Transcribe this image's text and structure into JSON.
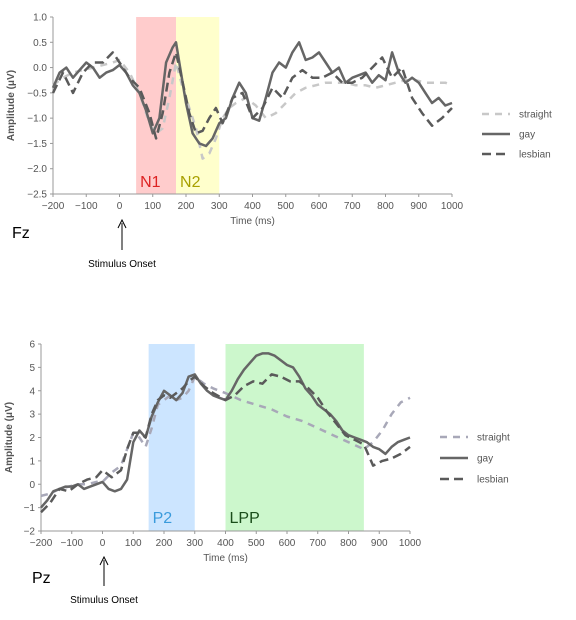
{
  "chart_data": [
    {
      "type": "line",
      "panel_label": "Fz",
      "xlabel": "Time (ms)",
      "ylabel": "Amplitude (μV)",
      "xlim": [
        -200,
        1000
      ],
      "ylim": [
        -2.5,
        1.0
      ],
      "x_ticks": [
        -200,
        -100,
        0,
        100,
        200,
        300,
        400,
        500,
        600,
        700,
        800,
        900,
        1000
      ],
      "y_ticks": [
        -2.5,
        -2.0,
        -1.5,
        -1.0,
        -0.5,
        0.0,
        0.5,
        1.0
      ],
      "y_tick_labels": [
        "−2.5",
        "−2.0",
        "−1.5",
        "−1.0",
        "−0.5",
        "0.0",
        "0.5",
        "1.0"
      ],
      "x_tick_labels": [
        "−200",
        "−100",
        "0",
        "100",
        "200",
        "300",
        "400",
        "500",
        "600",
        "700",
        "800",
        "900",
        "1000"
      ],
      "legend_position": "right",
      "annotation": "Stimulus Onset",
      "annotation_x": 0,
      "regions": [
        {
          "label": "N1",
          "x_start": 50,
          "x_end": 170,
          "color": "#ffcccc",
          "label_color": "#dd2222"
        },
        {
          "label": "N2",
          "x_start": 170,
          "x_end": 300,
          "color": "#ffffcc",
          "label_color": "#a8a000"
        }
      ],
      "series": [
        {
          "name": "straight",
          "color": "#c8c8c8",
          "dash": "7,6",
          "width": 2.5,
          "x": [
            -200,
            -170,
            -140,
            -110,
            -80,
            -50,
            -20,
            0,
            30,
            60,
            90,
            110,
            130,
            150,
            170,
            190,
            210,
            230,
            250,
            270,
            290,
            310,
            330,
            350,
            380,
            410,
            440,
            470,
            500,
            530,
            560,
            590,
            620,
            650,
            680,
            710,
            740,
            770,
            800,
            830,
            860,
            890,
            920,
            950,
            980,
            1000
          ],
          "y": [
            -0.35,
            -0.2,
            -0.1,
            -0.05,
            0.0,
            0.05,
            0.1,
            0.15,
            -0.1,
            -0.5,
            -1.1,
            -1.3,
            -1.2,
            -0.6,
            0.1,
            -0.4,
            -0.8,
            -1.2,
            -1.8,
            -1.7,
            -1.4,
            -1.0,
            -0.8,
            -0.7,
            -0.6,
            -0.75,
            -1.0,
            -0.9,
            -0.7,
            -0.5,
            -0.4,
            -0.35,
            -0.3,
            -0.3,
            -0.3,
            -0.35,
            -0.35,
            -0.4,
            -0.35,
            -0.3,
            -0.25,
            -0.25,
            -0.3,
            -0.3,
            -0.3,
            -0.35
          ]
        },
        {
          "name": "gay",
          "color": "#666666",
          "dash": "",
          "width": 2.5,
          "x": [
            -200,
            -180,
            -160,
            -140,
            -120,
            -100,
            -80,
            -60,
            -40,
            -20,
            0,
            20,
            40,
            60,
            80,
            100,
            120,
            140,
            160,
            170,
            180,
            200,
            220,
            240,
            260,
            280,
            300,
            320,
            340,
            360,
            380,
            400,
            420,
            440,
            460,
            480,
            500,
            520,
            540,
            560,
            580,
            600,
            620,
            640,
            660,
            680,
            700,
            720,
            740,
            760,
            780,
            800,
            820,
            840,
            860,
            880,
            900,
            920,
            940,
            960,
            980,
            1000
          ],
          "y": [
            -0.4,
            -0.1,
            0.0,
            -0.2,
            -0.05,
            0.1,
            0.0,
            -0.2,
            -0.1,
            -0.05,
            0.05,
            -0.1,
            -0.35,
            -0.5,
            -0.85,
            -1.3,
            -1.0,
            0.1,
            0.4,
            0.5,
            0.1,
            -0.7,
            -1.3,
            -1.5,
            -1.55,
            -1.4,
            -1.1,
            -1.0,
            -0.6,
            -0.3,
            -0.5,
            -1.0,
            -1.05,
            -0.6,
            -0.1,
            0.1,
            0.0,
            0.3,
            0.5,
            0.15,
            0.2,
            0.3,
            0.1,
            -0.1,
            0.0,
            -0.3,
            -0.2,
            -0.15,
            -0.1,
            -0.3,
            -0.15,
            -0.25,
            0.3,
            -0.1,
            -0.3,
            -0.2,
            -0.3,
            -0.5,
            -0.7,
            -0.6,
            -0.75,
            -0.7
          ]
        },
        {
          "name": "lesbian",
          "color": "#5a5a5a",
          "dash": "9,5",
          "width": 2.5,
          "x": [
            -200,
            -170,
            -140,
            -110,
            -80,
            -50,
            -20,
            0,
            30,
            60,
            90,
            110,
            130,
            150,
            170,
            190,
            210,
            230,
            250,
            270,
            290,
            310,
            340,
            370,
            400,
            430,
            460,
            490,
            520,
            550,
            580,
            610,
            640,
            670,
            700,
            730,
            760,
            790,
            820,
            850,
            880,
            910,
            940,
            970,
            1000
          ],
          "y": [
            -0.5,
            -0.1,
            -0.5,
            -0.1,
            0.1,
            0.1,
            0.3,
            0.1,
            -0.2,
            -0.4,
            -0.9,
            -1.4,
            -0.9,
            -0.1,
            0.3,
            -0.3,
            -0.9,
            -1.3,
            -1.25,
            -1.0,
            -0.8,
            -1.1,
            -0.6,
            -0.5,
            -1.0,
            -0.8,
            -0.4,
            -0.6,
            -0.2,
            -0.05,
            -0.2,
            -0.2,
            -0.1,
            -0.3,
            -0.3,
            -0.2,
            0.0,
            0.2,
            -0.2,
            0.0,
            -0.6,
            -0.9,
            -1.15,
            -1.0,
            -0.8
          ]
        }
      ]
    },
    {
      "type": "line",
      "panel_label": "Pz",
      "xlabel": "Time (ms)",
      "ylabel": "Amplitude (μV)",
      "xlim": [
        -200,
        1000
      ],
      "ylim": [
        -2,
        6
      ],
      "x_ticks": [
        -200,
        -100,
        0,
        100,
        200,
        300,
        400,
        500,
        600,
        700,
        800,
        900,
        1000
      ],
      "y_ticks": [
        -2,
        -1,
        0,
        1,
        2,
        3,
        4,
        5,
        6
      ],
      "y_tick_labels": [
        "−2",
        "−1",
        "0",
        "1",
        "2",
        "3",
        "4",
        "5",
        "6"
      ],
      "x_tick_labels": [
        "−200",
        "−100",
        "0",
        "100",
        "200",
        "300",
        "400",
        "500",
        "600",
        "700",
        "800",
        "900",
        "1000"
      ],
      "legend_position": "right",
      "annotation": "Stimulus Onset",
      "annotation_x": 0,
      "regions": [
        {
          "label": "P2",
          "x_start": 150,
          "x_end": 300,
          "color": "#cce5ff",
          "label_color": "#3a9bdc"
        },
        {
          "label": "LPP",
          "x_start": 400,
          "x_end": 850,
          "color": "#ccf7cc",
          "label_color": "#1a4d1a"
        }
      ],
      "series": [
        {
          "name": "straight",
          "color": "#a8a8b8",
          "dash": "7,6",
          "width": 2.5,
          "x": [
            -200,
            -170,
            -140,
            -110,
            -80,
            -50,
            -20,
            0,
            30,
            60,
            80,
            100,
            120,
            140,
            160,
            180,
            200,
            220,
            240,
            260,
            280,
            300,
            330,
            360,
            400,
            450,
            500,
            550,
            600,
            650,
            700,
            750,
            800,
            850,
            880,
            910,
            940,
            970,
            1000
          ],
          "y": [
            -0.5,
            -0.4,
            -0.2,
            -0.1,
            0.0,
            0.0,
            0.1,
            0.1,
            0.5,
            0.8,
            1.5,
            2.2,
            2.0,
            1.6,
            2.4,
            3.4,
            3.6,
            3.8,
            3.6,
            3.7,
            4.0,
            4.6,
            4.3,
            4.1,
            3.9,
            3.6,
            3.4,
            3.2,
            2.9,
            2.7,
            2.4,
            2.1,
            1.8,
            1.5,
            1.8,
            2.3,
            3.0,
            3.5,
            3.7
          ]
        },
        {
          "name": "gay",
          "color": "#666666",
          "dash": "",
          "width": 2.5,
          "x": [
            -200,
            -180,
            -160,
            -140,
            -120,
            -100,
            -80,
            -60,
            -40,
            -20,
            0,
            20,
            40,
            60,
            80,
            100,
            120,
            140,
            160,
            180,
            200,
            220,
            240,
            260,
            280,
            300,
            320,
            340,
            360,
            380,
            400,
            420,
            440,
            460,
            480,
            500,
            520,
            540,
            560,
            580,
            600,
            620,
            640,
            660,
            680,
            700,
            720,
            740,
            760,
            780,
            800,
            820,
            840,
            860,
            880,
            900,
            920,
            940,
            960,
            980,
            1000
          ],
          "y": [
            -1.0,
            -0.7,
            -0.3,
            -0.2,
            -0.1,
            -0.1,
            0.0,
            -0.2,
            -0.1,
            0.0,
            0.1,
            -0.2,
            -0.3,
            -0.2,
            0.2,
            1.8,
            2.3,
            2.0,
            2.9,
            3.5,
            4.0,
            3.8,
            3.6,
            3.9,
            4.6,
            4.7,
            4.3,
            4.0,
            3.8,
            3.7,
            3.6,
            4.0,
            4.5,
            4.9,
            5.2,
            5.5,
            5.6,
            5.6,
            5.5,
            5.3,
            5.1,
            5.0,
            4.6,
            4.1,
            3.8,
            3.4,
            3.2,
            3.0,
            2.7,
            2.3,
            2.1,
            2.0,
            1.9,
            1.8,
            1.6,
            1.5,
            1.3,
            1.6,
            1.8,
            1.9,
            2.0
          ]
        },
        {
          "name": "lesbian",
          "color": "#5a5a5a",
          "dash": "9,5",
          "width": 2.5,
          "x": [
            -200,
            -170,
            -140,
            -110,
            -80,
            -50,
            -20,
            0,
            30,
            60,
            80,
            100,
            120,
            140,
            160,
            180,
            200,
            220,
            240,
            260,
            280,
            300,
            330,
            360,
            400,
            430,
            460,
            490,
            520,
            550,
            580,
            610,
            640,
            670,
            700,
            730,
            760,
            790,
            820,
            850,
            880,
            910,
            940,
            970,
            1000
          ],
          "y": [
            -1.2,
            -0.8,
            -0.2,
            -0.3,
            0.0,
            0.2,
            0.3,
            0.6,
            0.3,
            0.6,
            1.5,
            2.2,
            2.2,
            2.0,
            3.0,
            3.6,
            3.8,
            3.7,
            3.9,
            4.1,
            4.4,
            4.6,
            4.2,
            3.9,
            3.6,
            3.8,
            4.2,
            4.4,
            4.3,
            4.7,
            4.6,
            4.4,
            4.4,
            4.1,
            3.7,
            3.1,
            2.6,
            2.1,
            1.9,
            1.7,
            0.8,
            1.0,
            1.1,
            1.3,
            1.6
          ]
        }
      ]
    }
  ]
}
